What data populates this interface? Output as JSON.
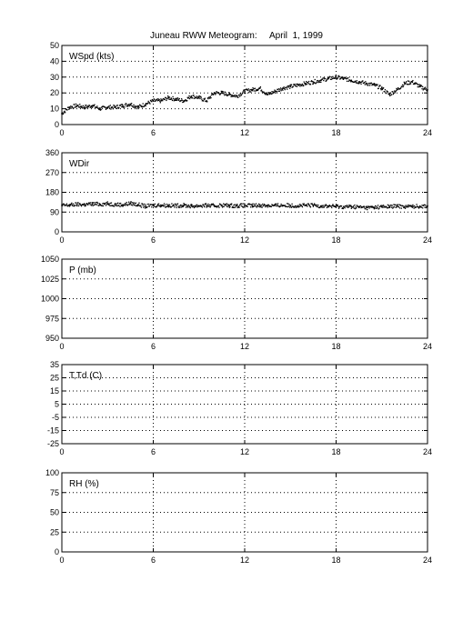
{
  "figure": {
    "title_left": "Juneau RWW Meteogram:",
    "title_right": "April  1, 1999"
  },
  "chart_data": [
    {
      "type": "scatter",
      "label": "WSpd (kts)",
      "x_ticks": [
        "0",
        "6",
        "12",
        "18",
        "24"
      ],
      "xlim": [
        0,
        24
      ],
      "ylim": [
        0,
        50
      ],
      "y_ticks": [
        "0",
        "10",
        "20",
        "30",
        "40",
        "50"
      ],
      "grid": true,
      "series": [
        {
          "x": [
            0,
            0.5,
            1,
            1.5,
            2,
            2.5,
            3,
            3.5,
            4,
            4.5,
            5,
            5.5,
            6,
            6.5,
            7,
            7.5,
            8,
            8.5,
            9,
            9.5,
            10,
            10.5,
            11,
            11.5,
            12,
            12.5,
            13,
            13.5,
            14,
            14.5,
            15,
            15.5,
            16,
            16.5,
            17,
            17.5,
            18,
            18.5,
            19,
            19.5,
            20,
            20.5,
            21,
            21.5,
            22,
            22.5,
            23,
            23.5,
            24
          ],
          "values": [
            7,
            11,
            12,
            11,
            12,
            10,
            11,
            11,
            12,
            13,
            11,
            13,
            15,
            15,
            17,
            16,
            15,
            18,
            17,
            15,
            20,
            20,
            19,
            18,
            21,
            22,
            23,
            19,
            21,
            23,
            24,
            25,
            26,
            27,
            28,
            29,
            30,
            29,
            28,
            27,
            26,
            25,
            23,
            19,
            22,
            26,
            27,
            24,
            22
          ]
        }
      ]
    },
    {
      "type": "scatter",
      "label": "WDir",
      "x_ticks": [
        "0",
        "6",
        "12",
        "18",
        "24"
      ],
      "xlim": [
        0,
        24
      ],
      "ylim": [
        0,
        360
      ],
      "y_ticks": [
        "0",
        "90",
        "180",
        "270",
        "360"
      ],
      "grid": true,
      "series": [
        {
          "x": [
            0,
            0.5,
            1,
            1.5,
            2,
            2.5,
            3,
            3.5,
            4,
            4.5,
            5,
            5.5,
            6,
            6.5,
            7,
            7.5,
            8,
            8.5,
            9,
            9.5,
            10,
            10.5,
            11,
            11.5,
            12,
            12.5,
            13,
            13.5,
            14,
            14.5,
            15,
            15.5,
            16,
            16.5,
            17,
            17.5,
            18,
            18.5,
            19,
            19.5,
            20,
            20.5,
            21,
            21.5,
            22,
            22.5,
            23,
            23.5,
            24
          ],
          "values": [
            120,
            122,
            125,
            124,
            127,
            126,
            128,
            125,
            123,
            130,
            124,
            116,
            121,
            122,
            120,
            119,
            121,
            117,
            119,
            120,
            118,
            121,
            120,
            119,
            120,
            119,
            121,
            120,
            120,
            121,
            120,
            119,
            120,
            121,
            118,
            117,
            116,
            114,
            115,
            113,
            110,
            112,
            114,
            115,
            117,
            115,
            116,
            117,
            118
          ]
        }
      ]
    },
    {
      "type": "scatter",
      "label": "P (mb)",
      "x_ticks": [
        "0",
        "6",
        "12",
        "18",
        "24"
      ],
      "xlim": [
        0,
        24
      ],
      "ylim": [
        950,
        1050
      ],
      "y_ticks": [
        "950",
        "975",
        "1000",
        "1025",
        "1050"
      ],
      "grid": true,
      "series": []
    },
    {
      "type": "scatter",
      "label": "T,Td (C)",
      "x_ticks": [
        "0",
        "6",
        "12",
        "18",
        "24"
      ],
      "xlim": [
        0,
        24
      ],
      "ylim": [
        -25,
        35
      ],
      "y_ticks": [
        "-25",
        "-15",
        "-5",
        "5",
        "15",
        "25",
        "35"
      ],
      "grid": true,
      "series": []
    },
    {
      "type": "scatter",
      "label": "RH (%)",
      "x_ticks": [
        "0",
        "6",
        "12",
        "18",
        "24"
      ],
      "xlim": [
        0,
        24
      ],
      "ylim": [
        0,
        100
      ],
      "y_ticks": [
        "0",
        "25",
        "50",
        "75",
        "100"
      ],
      "grid": true,
      "series": []
    }
  ]
}
